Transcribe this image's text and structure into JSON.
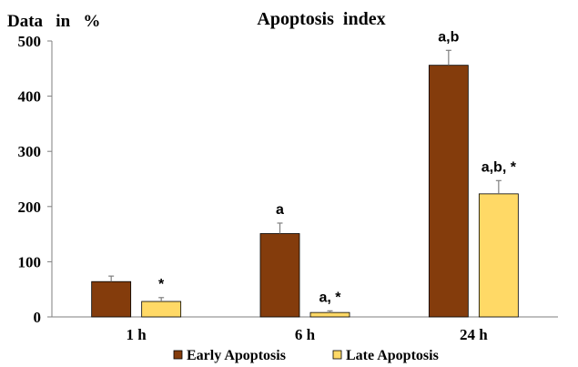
{
  "chart_data": {
    "type": "bar",
    "title": "Apoptosis  index",
    "ylabel": "Data   in   %",
    "xlabel": "",
    "ylim": [
      0,
      500
    ],
    "yticks": [
      0,
      100,
      200,
      300,
      400,
      500
    ],
    "grid": false,
    "legend_position": "bottom",
    "categories": [
      "1 h",
      "6 h",
      "24 h"
    ],
    "series": [
      {
        "name": "Early Apoptosis",
        "color": "#843C0C",
        "values": [
          64,
          151,
          456
        ],
        "errors": [
          10,
          19,
          27
        ],
        "annotations": [
          "",
          "a",
          "a,b"
        ]
      },
      {
        "name": "Late Apoptosis",
        "color": "#FFD966",
        "values": [
          28,
          8,
          223
        ],
        "errors": [
          7,
          3,
          24
        ],
        "annotations": [
          "*",
          "a, *",
          "a,b, *"
        ]
      }
    ]
  }
}
